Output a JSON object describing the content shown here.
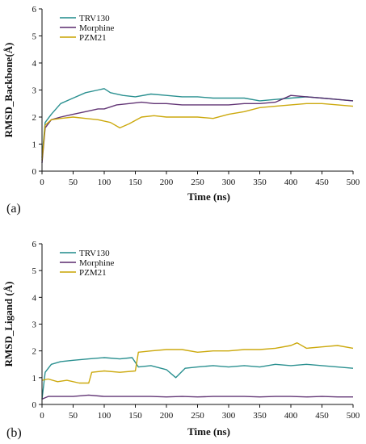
{
  "chart_data": [
    {
      "type": "line",
      "panel_label": "(a)",
      "xlabel": "Time (ns)",
      "ylabel": "RMSD_Backbone(Å)",
      "xlim": [
        0,
        500
      ],
      "ylim": [
        0,
        6
      ],
      "xticks": [
        "0",
        "50",
        "100",
        "150",
        "200",
        "250",
        "300",
        "350",
        "400",
        "450",
        "500"
      ],
      "yticks": [
        "0",
        "1",
        "2",
        "3",
        "4",
        "5",
        "6"
      ],
      "grid": false,
      "legend_position": "top-left",
      "series": [
        {
          "name": "TRV130",
          "color": "#1f8a8a",
          "points": [
            [
              0,
              0.5
            ],
            [
              5,
              1.8
            ],
            [
              15,
              2.1
            ],
            [
              30,
              2.5
            ],
            [
              50,
              2.7
            ],
            [
              70,
              2.9
            ],
            [
              90,
              3.0
            ],
            [
              100,
              3.05
            ],
            [
              110,
              2.9
            ],
            [
              130,
              2.8
            ],
            [
              150,
              2.75
            ],
            [
              175,
              2.85
            ],
            [
              200,
              2.8
            ],
            [
              225,
              2.75
            ],
            [
              250,
              2.75
            ],
            [
              275,
              2.7
            ],
            [
              300,
              2.7
            ],
            [
              325,
              2.7
            ],
            [
              350,
              2.6
            ],
            [
              375,
              2.65
            ],
            [
              400,
              2.7
            ],
            [
              425,
              2.75
            ],
            [
              450,
              2.7
            ],
            [
              475,
              2.65
            ],
            [
              500,
              2.6
            ]
          ]
        },
        {
          "name": "Morphine",
          "color": "#5a2a6e",
          "points": [
            [
              0,
              0.3
            ],
            [
              5,
              1.6
            ],
            [
              15,
              1.9
            ],
            [
              30,
              2.0
            ],
            [
              50,
              2.1
            ],
            [
              70,
              2.2
            ],
            [
              90,
              2.3
            ],
            [
              100,
              2.3
            ],
            [
              120,
              2.45
            ],
            [
              140,
              2.5
            ],
            [
              160,
              2.55
            ],
            [
              180,
              2.5
            ],
            [
              200,
              2.5
            ],
            [
              225,
              2.45
            ],
            [
              250,
              2.45
            ],
            [
              275,
              2.45
            ],
            [
              300,
              2.45
            ],
            [
              325,
              2.5
            ],
            [
              350,
              2.5
            ],
            [
              375,
              2.55
            ],
            [
              400,
              2.8
            ],
            [
              425,
              2.75
            ],
            [
              450,
              2.7
            ],
            [
              475,
              2.65
            ],
            [
              500,
              2.6
            ]
          ]
        },
        {
          "name": "PZM21",
          "color": "#c9a400",
          "points": [
            [
              0,
              0.4
            ],
            [
              5,
              1.7
            ],
            [
              15,
              1.9
            ],
            [
              30,
              1.95
            ],
            [
              50,
              2.0
            ],
            [
              70,
              1.95
            ],
            [
              90,
              1.9
            ],
            [
              110,
              1.8
            ],
            [
              125,
              1.6
            ],
            [
              140,
              1.75
            ],
            [
              160,
              2.0
            ],
            [
              180,
              2.05
            ],
            [
              200,
              2.0
            ],
            [
              225,
              2.0
            ],
            [
              250,
              2.0
            ],
            [
              275,
              1.95
            ],
            [
              300,
              2.1
            ],
            [
              325,
              2.2
            ],
            [
              350,
              2.35
            ],
            [
              375,
              2.4
            ],
            [
              400,
              2.45
            ],
            [
              425,
              2.5
            ],
            [
              450,
              2.5
            ],
            [
              475,
              2.45
            ],
            [
              500,
              2.4
            ]
          ]
        }
      ]
    },
    {
      "type": "line",
      "panel_label": "(b)",
      "xlabel": "Time (ns)",
      "ylabel": "RMSD_Ligand (Å)",
      "xlim": [
        0,
        500
      ],
      "ylim": [
        0,
        6
      ],
      "xticks": [
        "0",
        "50",
        "100",
        "150",
        "200",
        "250",
        "300",
        "350",
        "400",
        "450",
        "500"
      ],
      "yticks": [
        "0",
        "1",
        "2",
        "3",
        "4",
        "5",
        "6"
      ],
      "grid": false,
      "legend_position": "top-left",
      "series": [
        {
          "name": "TRV130",
          "color": "#1f8a8a",
          "points": [
            [
              0,
              0.2
            ],
            [
              5,
              1.2
            ],
            [
              15,
              1.5
            ],
            [
              30,
              1.6
            ],
            [
              50,
              1.65
            ],
            [
              75,
              1.7
            ],
            [
              100,
              1.75
            ],
            [
              125,
              1.7
            ],
            [
              145,
              1.75
            ],
            [
              155,
              1.4
            ],
            [
              175,
              1.45
            ],
            [
              200,
              1.3
            ],
            [
              215,
              1.0
            ],
            [
              230,
              1.35
            ],
            [
              250,
              1.4
            ],
            [
              275,
              1.45
            ],
            [
              300,
              1.4
            ],
            [
              325,
              1.45
            ],
            [
              350,
              1.4
            ],
            [
              375,
              1.5
            ],
            [
              400,
              1.45
            ],
            [
              425,
              1.5
            ],
            [
              450,
              1.45
            ],
            [
              475,
              1.4
            ],
            [
              500,
              1.35
            ]
          ]
        },
        {
          "name": "Morphine",
          "color": "#5a2a6e",
          "points": [
            [
              0,
              0.2
            ],
            [
              10,
              0.3
            ],
            [
              25,
              0.3
            ],
            [
              50,
              0.3
            ],
            [
              75,
              0.35
            ],
            [
              100,
              0.3
            ],
            [
              125,
              0.3
            ],
            [
              150,
              0.3
            ],
            [
              175,
              0.3
            ],
            [
              200,
              0.28
            ],
            [
              225,
              0.3
            ],
            [
              250,
              0.28
            ],
            [
              275,
              0.3
            ],
            [
              300,
              0.3
            ],
            [
              325,
              0.3
            ],
            [
              350,
              0.28
            ],
            [
              375,
              0.3
            ],
            [
              400,
              0.3
            ],
            [
              425,
              0.28
            ],
            [
              450,
              0.3
            ],
            [
              475,
              0.28
            ],
            [
              500,
              0.28
            ]
          ]
        },
        {
          "name": "PZM21",
          "color": "#c9a400",
          "points": [
            [
              0,
              0.9
            ],
            [
              10,
              0.95
            ],
            [
              25,
              0.85
            ],
            [
              40,
              0.9
            ],
            [
              60,
              0.8
            ],
            [
              75,
              0.8
            ],
            [
              80,
              1.2
            ],
            [
              100,
              1.25
            ],
            [
              125,
              1.2
            ],
            [
              150,
              1.25
            ],
            [
              155,
              1.95
            ],
            [
              175,
              2.0
            ],
            [
              200,
              2.05
            ],
            [
              225,
              2.05
            ],
            [
              250,
              1.95
            ],
            [
              275,
              2.0
            ],
            [
              300,
              2.0
            ],
            [
              325,
              2.05
            ],
            [
              350,
              2.05
            ],
            [
              375,
              2.1
            ],
            [
              400,
              2.2
            ],
            [
              410,
              2.3
            ],
            [
              425,
              2.1
            ],
            [
              450,
              2.15
            ],
            [
              475,
              2.2
            ],
            [
              500,
              2.1
            ]
          ]
        }
      ]
    }
  ]
}
